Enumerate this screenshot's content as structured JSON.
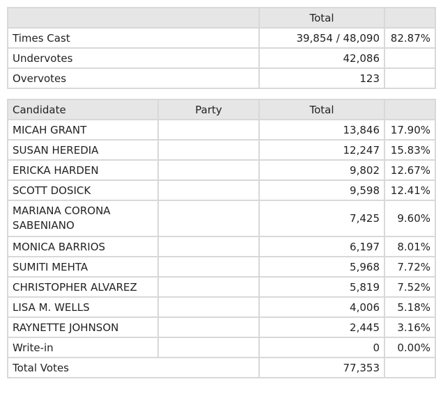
{
  "summary": {
    "header_total": "Total",
    "rows": [
      {
        "label": "Times Cast",
        "total": "39,854 / 48,090",
        "pct": "82.87%"
      },
      {
        "label": "Undervotes",
        "total": "42,086",
        "pct": ""
      },
      {
        "label": "Overvotes",
        "total": "123",
        "pct": ""
      }
    ]
  },
  "results": {
    "headers": {
      "candidate": "Candidate",
      "party": "Party",
      "total": "Total"
    },
    "rows": [
      {
        "candidate": "MICAH GRANT",
        "party": "",
        "total": "13,846",
        "pct": "17.90%"
      },
      {
        "candidate": "SUSAN HEREDIA",
        "party": "",
        "total": "12,247",
        "pct": "15.83%"
      },
      {
        "candidate": "ERICKA HARDEN",
        "party": "",
        "total": "9,802",
        "pct": "12.67%"
      },
      {
        "candidate": "SCOTT DOSICK",
        "party": "",
        "total": "9,598",
        "pct": "12.41%"
      },
      {
        "candidate": "MARIANA CORONA SABENIANO",
        "party": "",
        "total": "7,425",
        "pct": "9.60%"
      },
      {
        "candidate": "MONICA BARRIOS",
        "party": "",
        "total": "6,197",
        "pct": "8.01%"
      },
      {
        "candidate": "SUMITI MEHTA",
        "party": "",
        "total": "5,968",
        "pct": "7.72%"
      },
      {
        "candidate": "CHRISTOPHER ALVAREZ",
        "party": "",
        "total": "5,819",
        "pct": "7.52%"
      },
      {
        "candidate": "LISA M. WELLS",
        "party": "",
        "total": "4,006",
        "pct": "5.18%"
      },
      {
        "candidate": "RAYNETTE JOHNSON",
        "party": "",
        "total": "2,445",
        "pct": "3.16%"
      },
      {
        "candidate": "Write-in",
        "party": "",
        "total": "0",
        "pct": "0.00%"
      }
    ],
    "total_votes": {
      "label": "Total Votes",
      "total": "77,353",
      "pct": ""
    }
  }
}
